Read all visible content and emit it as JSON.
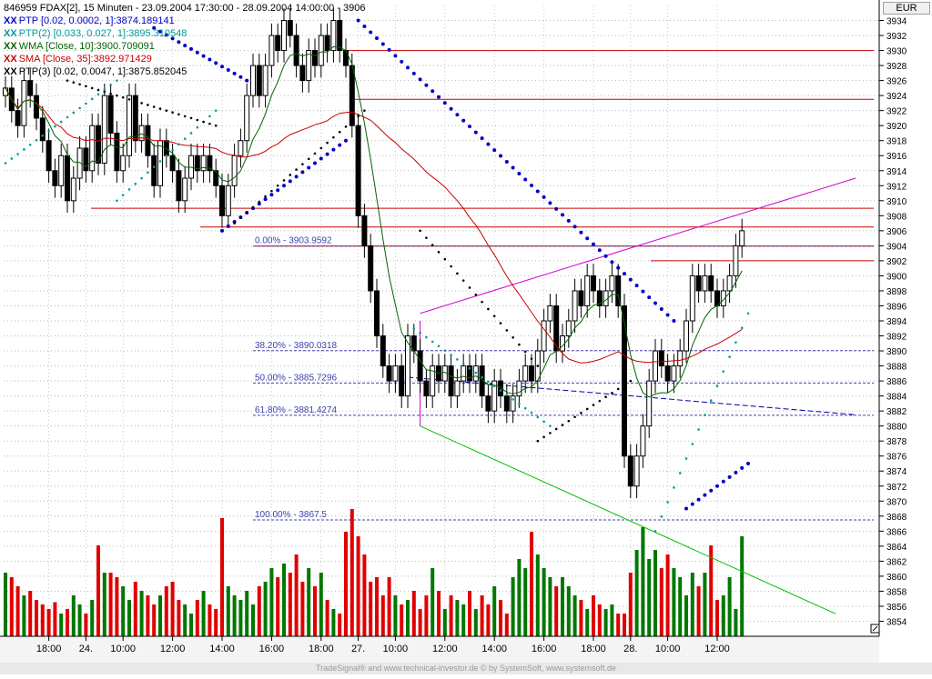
{
  "header": {
    "title": "846959  FDAX[2], 15 Minuten - 23.09.2004 17:30:00 - 28.09.2004 14:00:00 - 3906",
    "currency": "EUR"
  },
  "legend": [
    {
      "mark": "XX",
      "text": "PTP [0.02, 0.0002, 1]:3874.189141",
      "color": "#0000c8"
    },
    {
      "mark": "XX",
      "text": "PTP(2) [0.033, 0.027, 1]:3895.310548",
      "color": "#009a9a"
    },
    {
      "mark": "XX",
      "text": "WMA [Close, 10]:3900.709091",
      "color": "#006400"
    },
    {
      "mark": "XX",
      "text": "SMA [Close, 35]:3892.971429",
      "color": "#c80000"
    },
    {
      "mark": "XX",
      "text": "PTP(3) [0.02, 0.0047, 1]:3875.852045",
      "color": "#000000"
    }
  ],
  "footer": "TradeSignal® and www.technical-investor.de © by SystemSoft, www.systemsoft.de",
  "chart_data": {
    "type": "candlestick",
    "ylim": [
      3852,
      3936
    ],
    "y_ticks": [
      3854,
      3856,
      3858,
      3860,
      3862,
      3864,
      3866,
      3868,
      3870,
      3872,
      3874,
      3876,
      3878,
      3880,
      3882,
      3884,
      3886,
      3888,
      3890,
      3892,
      3894,
      3896,
      3898,
      3900,
      3902,
      3904,
      3906,
      3908,
      3910,
      3912,
      3914,
      3916,
      3918,
      3920,
      3922,
      3924,
      3926,
      3928,
      3930,
      3932,
      3934
    ],
    "x_ticks": [
      {
        "label": "18:00",
        "i": 7
      },
      {
        "label": "24.",
        "i": 13
      },
      {
        "label": "10:00",
        "i": 19
      },
      {
        "label": "12:00",
        "i": 27
      },
      {
        "label": "14:00",
        "i": 35
      },
      {
        "label": "16:00",
        "i": 43
      },
      {
        "label": "18:00",
        "i": 51
      },
      {
        "label": "27.",
        "i": 57
      },
      {
        "label": "10:00",
        "i": 63
      },
      {
        "label": "12:00",
        "i": 71
      },
      {
        "label": "14:00",
        "i": 79
      },
      {
        "label": "16:00",
        "i": 87
      },
      {
        "label": "18:00",
        "i": 95
      },
      {
        "label": "28.",
        "i": 101
      },
      {
        "label": "10:00",
        "i": 107
      },
      {
        "label": "12:00",
        "i": 115
      }
    ],
    "series": [
      {
        "name": "Close",
        "values": [
          3925,
          3922,
          3920,
          3926,
          3924,
          3921,
          3918,
          3914,
          3912,
          3916,
          3910,
          3913,
          3917,
          3914,
          3920,
          3915,
          3924,
          3919,
          3914,
          3916,
          3924,
          3918,
          3920,
          3916,
          3912,
          3918,
          3916,
          3914,
          3910,
          3913,
          3916,
          3914,
          3916,
          3914,
          3912,
          3908,
          3912,
          3916,
          3918,
          3924,
          3928,
          3924,
          3928,
          3932,
          3930,
          3934,
          3932,
          3928,
          3926,
          3930,
          3928,
          3932,
          3930,
          3934,
          3930,
          3928,
          3920,
          3908,
          3904,
          3898,
          3892,
          3888,
          3886,
          3888,
          3884,
          3892,
          3890,
          3886,
          3884,
          3888,
          3886,
          3888,
          3884,
          3886,
          3888,
          3886,
          3888,
          3884,
          3882,
          3886,
          3884,
          3882,
          3884,
          3886,
          3888,
          3886,
          3890,
          3894,
          3896,
          3890,
          3892,
          3894,
          3898,
          3896,
          3900,
          3898,
          3896,
          3898,
          3900,
          3896,
          3876,
          3872,
          3876,
          3880,
          3886,
          3890,
          3888,
          3886,
          3888,
          3890,
          3894,
          3900,
          3898,
          3900,
          3898,
          3896,
          3898,
          3900,
          3904,
          3906
        ]
      },
      {
        "name": "Volume",
        "values": [
          28,
          26,
          22,
          18,
          20,
          16,
          14,
          12,
          15,
          10,
          12,
          18,
          14,
          10,
          16,
          40,
          28,
          28,
          26,
          22,
          16,
          24,
          20,
          18,
          14,
          18,
          22,
          24,
          16,
          14,
          10,
          16,
          20,
          14,
          12,
          52,
          22,
          18,
          16,
          20,
          14,
          22,
          24,
          30,
          26,
          32,
          28,
          36,
          24,
          30,
          22,
          28,
          16,
          12,
          10,
          46,
          56,
          44,
          36,
          24,
          26,
          18,
          26,
          18,
          14,
          16,
          20,
          12,
          18,
          30,
          20,
          12,
          18,
          16,
          14,
          20,
          12,
          18,
          14,
          22,
          16,
          10,
          26,
          34,
          30,
          46,
          36,
          30,
          26,
          22,
          26,
          22,
          18,
          16,
          12,
          18,
          14,
          12,
          14,
          10,
          10,
          28,
          38,
          48,
          34,
          38,
          30,
          36,
          30,
          26,
          18,
          28,
          22,
          28,
          40,
          16,
          18,
          26,
          12,
          44
        ]
      }
    ],
    "horizontal_levels": [
      3930,
      3923.5,
      3909,
      3906.5,
      3903.9592,
      3902
    ],
    "fibonacci": [
      {
        "label": "0.00% - 3903.9592",
        "value": 3903.9592
      },
      {
        "label": "38.20% - 3890.0318",
        "value": 3890.0318
      },
      {
        "label": "50.00% - 3885.7296",
        "value": 3885.7296
      },
      {
        "label": "61.80% - 3881.4274",
        "value": 3881.4274
      },
      {
        "label": "100.00% - 3867.5",
        "value": 3867.5
      }
    ],
    "colors": {
      "up_volume": "#007800",
      "down_volume": "#e00000",
      "level": "#cc0000",
      "fib": "#4040b0",
      "wma": "#006400",
      "sma": "#c80000",
      "ptp": "#0000c8",
      "ptp2": "#009a9a",
      "ptp3": "#000000",
      "trend_upper": "#d000d0",
      "trend_lower": "#00c000",
      "trend_mid": "#0000a0"
    }
  }
}
